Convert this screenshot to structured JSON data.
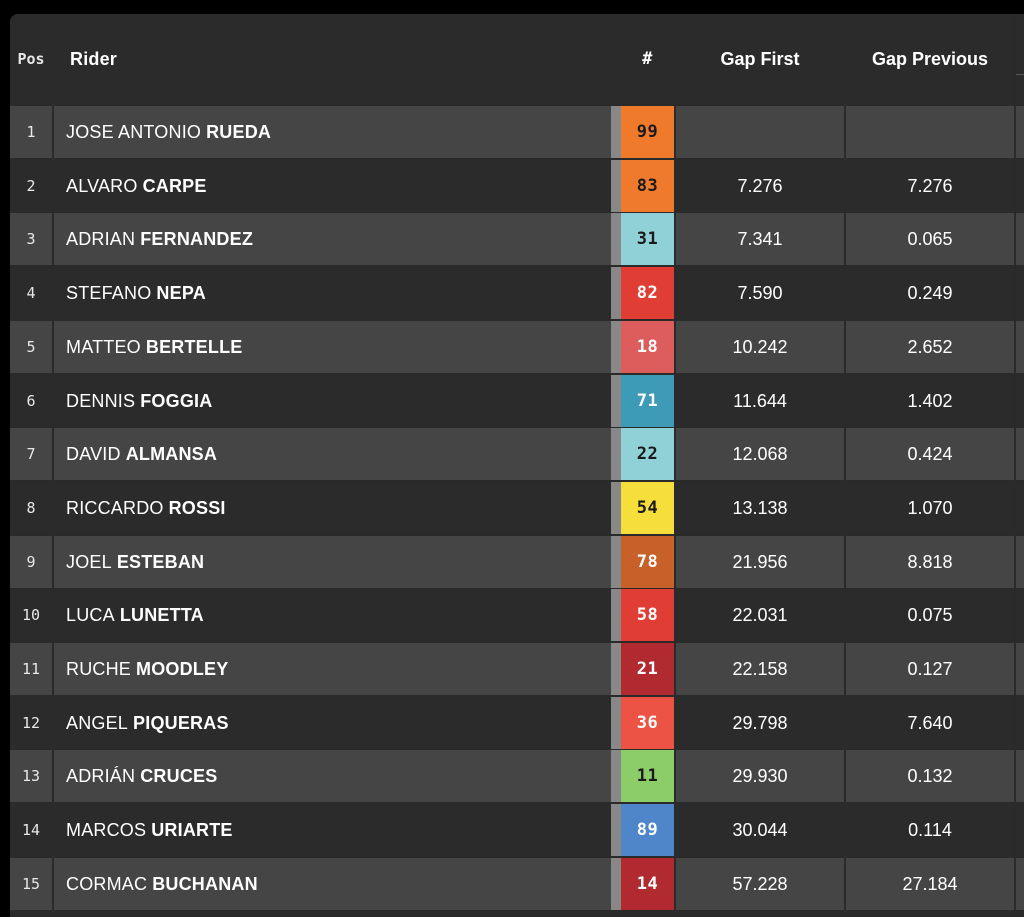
{
  "header": {
    "pos": "Pos",
    "rider": "Rider",
    "number": "#",
    "gap_first": "Gap First",
    "gap_previous": "Gap Previous"
  },
  "rows": [
    {
      "pos": "1",
      "first": "JOSE ANTONIO",
      "last": "RUEDA",
      "number": "99",
      "color": "#f07a2c",
      "text": "dark",
      "gap_first": "",
      "gap_previous": ""
    },
    {
      "pos": "2",
      "first": "ALVARO",
      "last": "CARPE",
      "number": "83",
      "color": "#f07a2c",
      "text": "dark",
      "gap_first": "7.276",
      "gap_previous": "7.276"
    },
    {
      "pos": "3",
      "first": "ADRIAN",
      "last": "FERNANDEZ",
      "number": "31",
      "color": "#8fd1d6",
      "text": "dark",
      "gap_first": "7.341",
      "gap_previous": "0.065"
    },
    {
      "pos": "4",
      "first": "STEFANO",
      "last": "NEPA",
      "number": "82",
      "color": "#e03e34",
      "text": "light",
      "gap_first": "7.590",
      "gap_previous": "0.249"
    },
    {
      "pos": "5",
      "first": "MATTEO",
      "last": "BERTELLE",
      "number": "18",
      "color": "#dd5d5d",
      "text": "light",
      "gap_first": "10.242",
      "gap_previous": "2.652"
    },
    {
      "pos": "6",
      "first": "DENNIS",
      "last": "FOGGIA",
      "number": "71",
      "color": "#3d9bb8",
      "text": "light",
      "gap_first": "11.644",
      "gap_previous": "1.402"
    },
    {
      "pos": "7",
      "first": "DAVID",
      "last": "ALMANSA",
      "number": "22",
      "color": "#8fd1d6",
      "text": "dark",
      "gap_first": "12.068",
      "gap_previous": "0.424"
    },
    {
      "pos": "8",
      "first": "RICCARDO",
      "last": "ROSSI",
      "number": "54",
      "color": "#f6df3a",
      "text": "dark",
      "gap_first": "13.138",
      "gap_previous": "1.070"
    },
    {
      "pos": "9",
      "first": "JOEL",
      "last": "ESTEBAN",
      "number": "78",
      "color": "#c8602a",
      "text": "light",
      "gap_first": "21.956",
      "gap_previous": "8.818"
    },
    {
      "pos": "10",
      "first": "LUCA",
      "last": "LUNETTA",
      "number": "58",
      "color": "#e03e34",
      "text": "light",
      "gap_first": "22.031",
      "gap_previous": "0.075"
    },
    {
      "pos": "11",
      "first": "RUCHE",
      "last": "MOODLEY",
      "number": "21",
      "color": "#b02a30",
      "text": "light",
      "gap_first": "22.158",
      "gap_previous": "0.127"
    },
    {
      "pos": "12",
      "first": "ANGEL",
      "last": "PIQUERAS",
      "number": "36",
      "color": "#ec5345",
      "text": "light",
      "gap_first": "29.798",
      "gap_previous": "7.640"
    },
    {
      "pos": "13",
      "first": "ADRIÁN",
      "last": "CRUCES",
      "number": "11",
      "color": "#8ccd6a",
      "text": "dark",
      "gap_first": "29.930",
      "gap_previous": "0.132"
    },
    {
      "pos": "14",
      "first": "MARCOS",
      "last": "URIARTE",
      "number": "89",
      "color": "#4f86c9",
      "text": "light",
      "gap_first": "30.044",
      "gap_previous": "0.114"
    },
    {
      "pos": "15",
      "first": "CORMAC",
      "last": "BUCHANAN",
      "number": "14",
      "color": "#b02a30",
      "text": "light",
      "gap_first": "57.228",
      "gap_previous": "27.184"
    }
  ]
}
